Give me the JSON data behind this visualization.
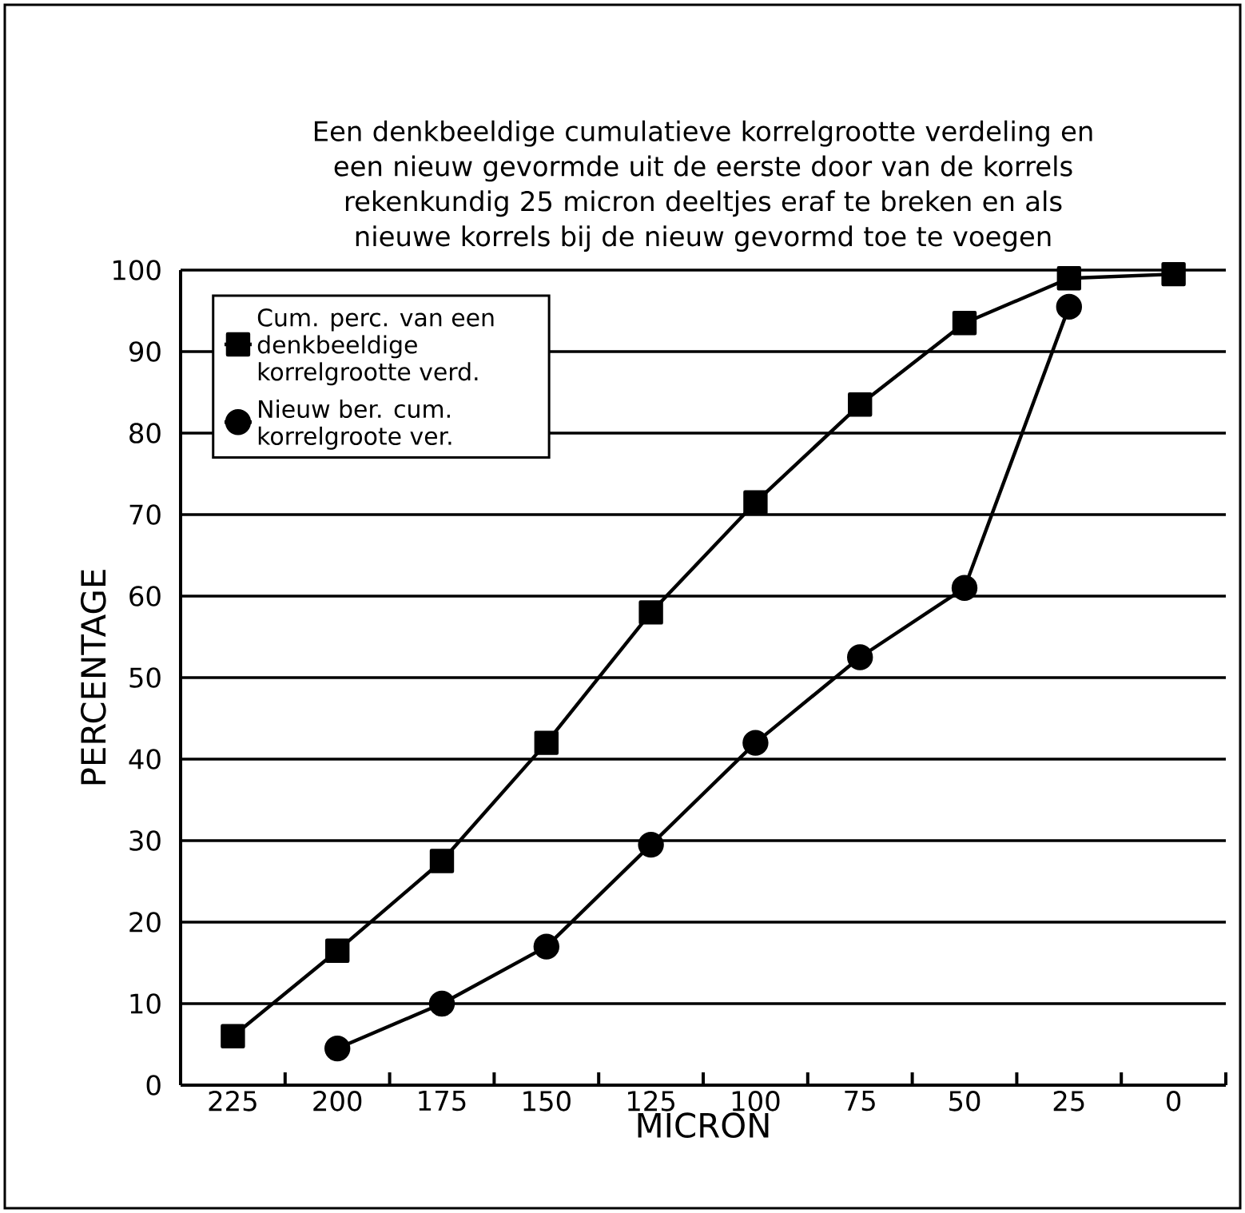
{
  "chart_data": {
    "type": "line",
    "title": "Een denkbeeldige cumulatieve korrelgrootte verdeling en een nieuw gevormde uit de eerste door van de korrels rekenkundig 25 micron deeltjes eraf te breken en als nieuwe korrels bij de nieuw gevormd toe te voegen",
    "xlabel": "MICRON",
    "ylabel": "PERCENTAGE",
    "categories": [
      "225",
      "200",
      "175",
      "150",
      "125",
      "100",
      "75",
      "50",
      "25",
      "0"
    ],
    "series": [
      {
        "name": "Cum. perc. van een denkbeeldige korrelgrootte verd.",
        "color": "#000000",
        "marker": "square",
        "values": [
          6,
          16.5,
          27.5,
          42,
          58,
          71.5,
          83.5,
          93.5,
          99,
          99.5
        ]
      },
      {
        "name": "Nieuw ber. cum. korrelgroote ver.",
        "color": "#000000",
        "marker": "circle",
        "values": [
          null,
          4.5,
          10,
          17,
          29.5,
          42,
          52.5,
          61,
          95.5,
          null
        ]
      }
    ],
    "ylim": [
      0,
      100
    ],
    "yticks": [
      0,
      10,
      20,
      30,
      40,
      50,
      60,
      70,
      80,
      90,
      100
    ],
    "grid": "y",
    "legend": "top left",
    "line_style": "solid"
  }
}
